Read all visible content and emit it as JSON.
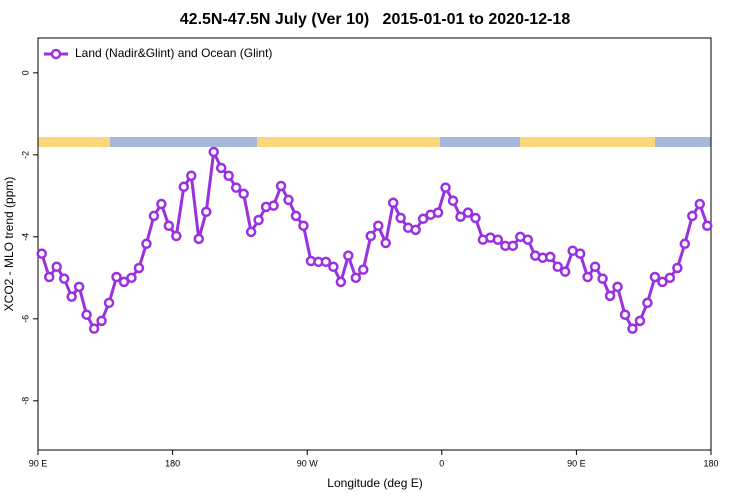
{
  "chart_data": {
    "type": "line",
    "title": "42.5N-47.5N July (Ver 10)   2015-01-01 to 2020-12-18",
    "x_label": "Longitude (deg E)",
    "y_label": "XCO2 - MLO trend (ppm)",
    "x": [
      92.5,
      97.5,
      102.5,
      107.5,
      112.5,
      117.5,
      122.5,
      127.5,
      132.5,
      137.5,
      142.5,
      147.5,
      152.5,
      157.5,
      162.5,
      167.5,
      172.5,
      177.5,
      182.5,
      187.5,
      192.5,
      197.5,
      202.5,
      207.5,
      212.5,
      217.5,
      222.5,
      227.5,
      232.5,
      237.5,
      242.5,
      247.5,
      252.5,
      257.5,
      262.5,
      267.5,
      272.5,
      277.5,
      282.5,
      287.5,
      292.5,
      297.5,
      302.5,
      307.5,
      312.5,
      317.5,
      322.5,
      327.5,
      332.5,
      337.5,
      342.5,
      347.5,
      352.5,
      357.5,
      362.5,
      367.5,
      372.5,
      377.5,
      382.5,
      387.5,
      392.5,
      397.5,
      402.5,
      407.5,
      412.5,
      417.5,
      422.5,
      427.5,
      432.5,
      437.5,
      442.5,
      447.5,
      452.5,
      457.5,
      462.5,
      467.5,
      472.5,
      477.5,
      482.5,
      487.5,
      492.5,
      497.5,
      502.5,
      507.5,
      512.5,
      517.5,
      522.5,
      527.5,
      532.5,
      537.5
    ],
    "series": [
      {
        "name": "Land (Nadir&Glint) and Ocean (Glint)",
        "color": "#9b30e0",
        "values": [
          -4.41,
          -4.98,
          -4.73,
          -5.02,
          -5.46,
          -5.22,
          -5.9,
          -6.24,
          -6.05,
          -5.61,
          -4.98,
          -5.1,
          -5.0,
          -4.76,
          -4.17,
          -3.49,
          -3.2,
          -3.73,
          -3.98,
          -2.78,
          -2.51,
          -4.05,
          -3.39,
          -1.93,
          -2.32,
          -2.51,
          -2.8,
          -2.95,
          -3.88,
          -3.59,
          -3.27,
          -3.24,
          -2.76,
          -3.1,
          -3.49,
          -3.73,
          -4.59,
          -4.61,
          -4.61,
          -4.73,
          -5.1,
          -4.46,
          -5.0,
          -4.8,
          -3.98,
          -3.73,
          -4.15,
          -3.17,
          -3.54,
          -3.78,
          -3.83,
          -3.56,
          -3.46,
          -3.41,
          -2.8,
          -3.12,
          -3.51,
          -3.41,
          -3.54,
          -4.07,
          -4.02,
          -4.07,
          -4.22,
          -4.22,
          -4.0,
          -4.07,
          -4.46,
          -4.51,
          -4.49,
          -4.73,
          -4.85,
          -4.34,
          -4.41,
          -4.98,
          -4.73,
          -5.02,
          -5.44,
          -5.22,
          -5.9,
          -6.24,
          -6.05,
          -5.61,
          -4.98,
          -5.1,
          -5.0,
          -4.76,
          -4.17,
          -3.49,
          -3.2,
          -3.73
        ]
      }
    ],
    "xlim": [
      90,
      540
    ],
    "xticks": [
      {
        "value": 90,
        "label": "90 E"
      },
      180,
      {
        "value": 270,
        "label": "90 W"
      },
      {
        "value": 360,
        "label": "0"
      },
      {
        "value": 450,
        "label": "90 E"
      },
      180
    ],
    "ylim": [
      -9.2,
      0.85
    ],
    "yticks": [
      0,
      -2,
      -4,
      -6,
      -8
    ],
    "legend": "top-left"
  }
}
